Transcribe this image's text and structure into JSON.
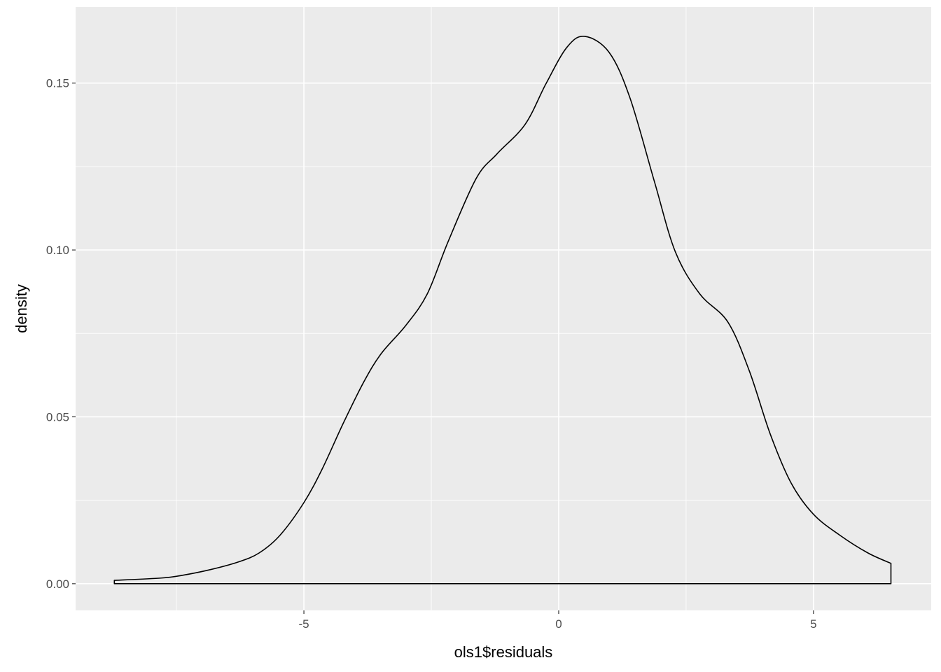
{
  "chart_data": {
    "type": "line",
    "geom": "density",
    "title": "",
    "xlabel": "ols1$residuals",
    "ylabel": "density",
    "xlim": [
      -9.48,
      7.31
    ],
    "ylim": [
      -0.008,
      0.1728
    ],
    "x_ticks": [
      -5,
      0,
      5
    ],
    "x_tick_labels": [
      "-5",
      "0",
      "5"
    ],
    "y_ticks": [
      0,
      0.05,
      0.1,
      0.15
    ],
    "y_tick_labels": [
      "0.00",
      "0.05",
      "0.10",
      "0.15"
    ],
    "grid": true,
    "legend": "none",
    "colors": {
      "panel": "#ebebeb",
      "grid": "#ffffff",
      "line": "#000000"
    },
    "points": [
      [
        -8.72,
        0.001
      ],
      [
        -7.8,
        0.0017
      ],
      [
        -7.39,
        0.0025
      ],
      [
        -6.84,
        0.0042
      ],
      [
        -6.29,
        0.0065
      ],
      [
        -5.88,
        0.0092
      ],
      [
        -5.47,
        0.0145
      ],
      [
        -5.0,
        0.0243
      ],
      [
        -4.64,
        0.0344
      ],
      [
        -4.23,
        0.048
      ],
      [
        -3.82,
        0.0606
      ],
      [
        -3.48,
        0.069
      ],
      [
        -3.0,
        0.0774
      ],
      [
        -2.58,
        0.0868
      ],
      [
        -2.17,
        0.1025
      ],
      [
        -1.62,
        0.1214
      ],
      [
        -1.21,
        0.1288
      ],
      [
        -0.66,
        0.1376
      ],
      [
        -0.25,
        0.1498
      ],
      [
        0.16,
        0.1607
      ],
      [
        0.51,
        0.164
      ],
      [
        0.99,
        0.1592
      ],
      [
        1.4,
        0.1455
      ],
      [
        1.88,
        0.1204
      ],
      [
        2.29,
        0.0994
      ],
      [
        2.77,
        0.0868
      ],
      [
        3.32,
        0.0784
      ],
      [
        3.74,
        0.0638
      ],
      [
        4.15,
        0.0449
      ],
      [
        4.56,
        0.0302
      ],
      [
        5.0,
        0.0208
      ],
      [
        5.52,
        0.0145
      ],
      [
        6.07,
        0.0092
      ],
      [
        6.52,
        0.0061
      ]
    ]
  }
}
